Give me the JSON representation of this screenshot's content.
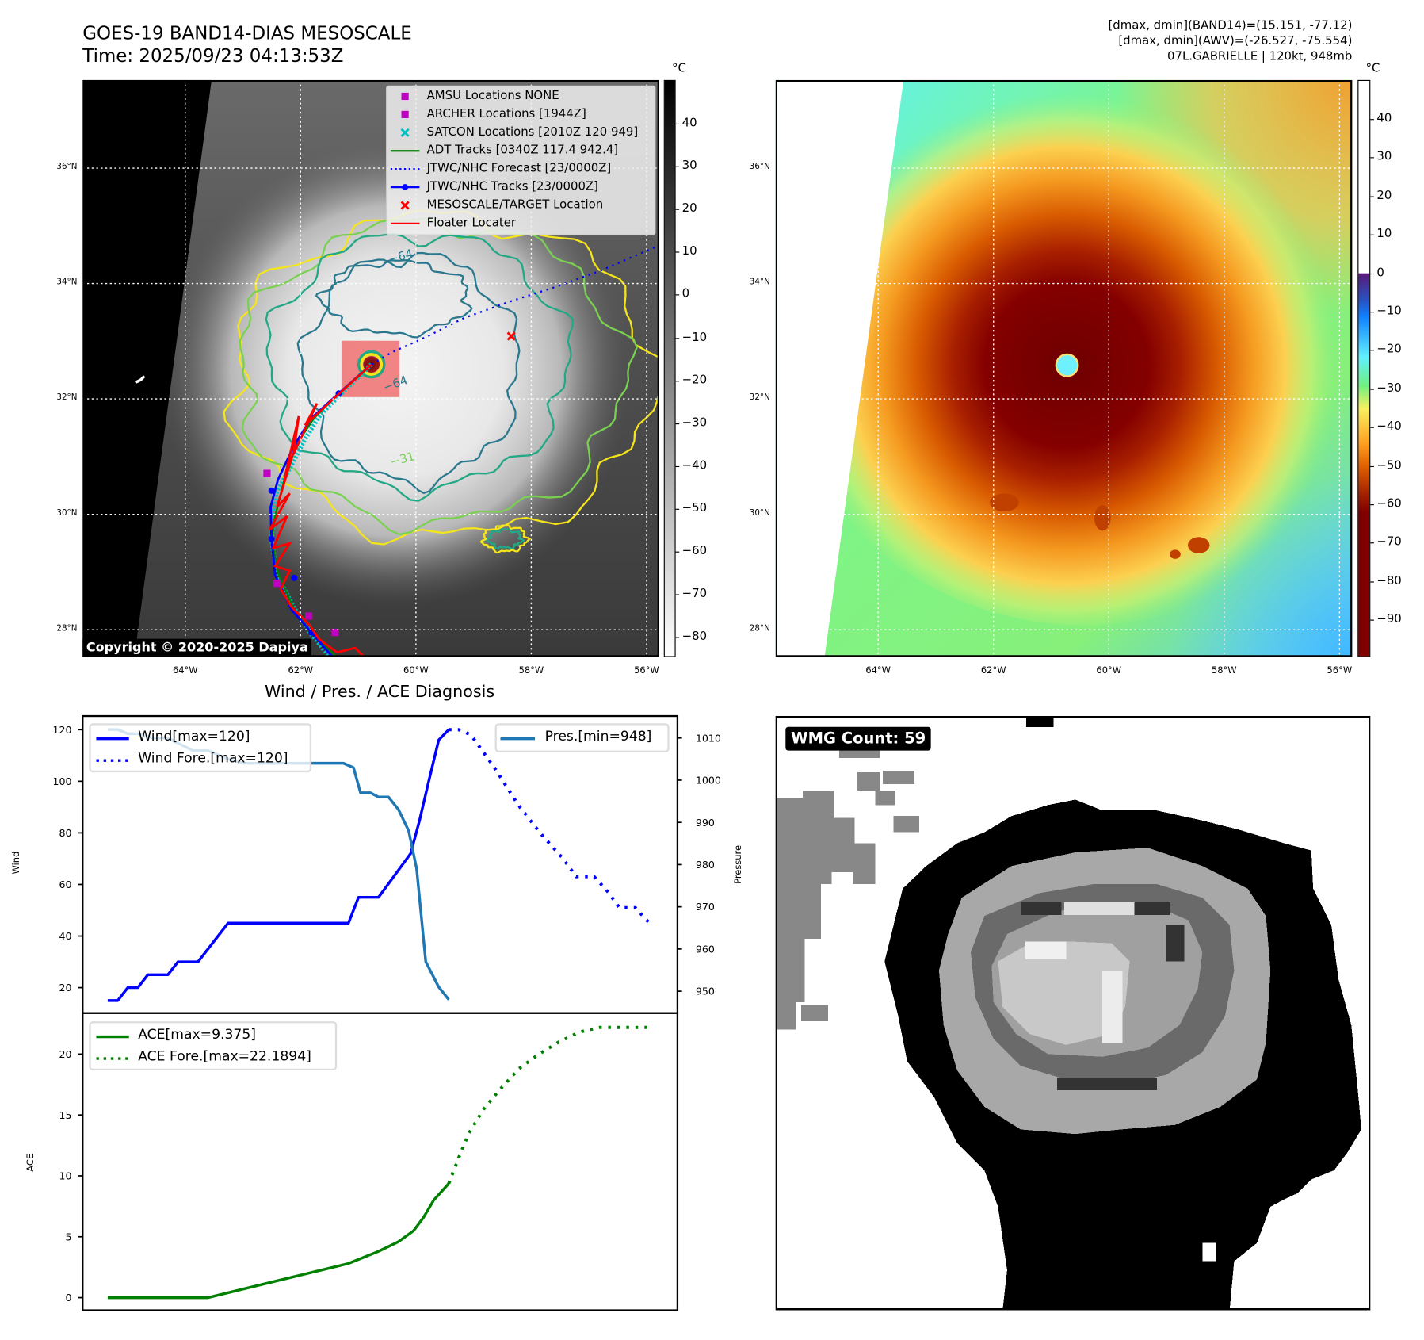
{
  "header": {
    "title": "GOES-19 BAND14-DIAS MESOSCALE",
    "time": "Time: 2025/09/23 04:13:53Z",
    "info": [
      "[dmax, dmin](BAND14)=(15.151, -77.12)",
      "[dmax, dmin](AWV)=(-26.527, -75.554)",
      "07L.GABRIELLE | 120kt, 948mb"
    ]
  },
  "map": {
    "lat_labels": [
      "36°N",
      "34°N",
      "32°N",
      "30°N",
      "28°N"
    ],
    "lon_labels": [
      "64°W",
      "62°W",
      "60°W",
      "58°W",
      "56°W"
    ],
    "copyright": "Copyright © 2020-2025 Dapiya",
    "contour_labels": [
      "−64",
      "−64",
      "−31"
    ],
    "legend": [
      {
        "label": "AMSU Locations NONE",
        "marker": "square",
        "color": "#c000c0"
      },
      {
        "label": "ARCHER Locations [1944Z]",
        "marker": "square",
        "color": "#c000c0"
      },
      {
        "label": "SATCON Locations [2010Z 120 949]",
        "marker": "x",
        "color": "#00c0c0"
      },
      {
        "label": "ADT Tracks [0340Z 117.4 942.4]",
        "marker": "line",
        "color": "#008000"
      },
      {
        "label": "JTWC/NHC Forecast [23/0000Z]",
        "marker": "dotted",
        "color": "#0000ff"
      },
      {
        "label": "JTWC/NHC Tracks [23/0000Z]",
        "marker": "line-dot",
        "color": "#0000ff"
      },
      {
        "label": "MESOSCALE/TARGET Location",
        "marker": "x",
        "color": "#ff0000"
      },
      {
        "label": "Floater Locater",
        "marker": "line",
        "color": "#ff0000"
      }
    ]
  },
  "colorbar_ir": {
    "unit": "°C",
    "ticks": [
      "40",
      "30",
      "20",
      "10",
      "0",
      "−10",
      "−20",
      "−30",
      "−40",
      "−50",
      "−60",
      "−70",
      "−80"
    ]
  },
  "colorbar_awv": {
    "unit": "°C",
    "ticks": [
      "40",
      "30",
      "20",
      "10",
      "0",
      "−10",
      "−20",
      "−30",
      "−40",
      "−50",
      "−60",
      "−70",
      "−80",
      "−90"
    ]
  },
  "diagnosis": {
    "title": "Wind / Pres. / ACE Diagnosis",
    "wind_ylabel": "Wind",
    "pres_ylabel": "Pressure",
    "ace_ylabel": "ACE",
    "legend_wind": "Wind[max=120]",
    "legend_wind_fore": "Wind Fore.[max=120]",
    "legend_pres": "Pres.[min=948]",
    "legend_ace": "ACE[max=9.375]",
    "legend_ace_fore": "ACE Fore.[max=22.1894]"
  },
  "chart_data": [
    {
      "type": "line",
      "title": "Wind / Pres. / ACE Diagnosis",
      "xlabel": "",
      "xlim": [
        -2.5,
        56.8
      ],
      "ylabel": "Wind",
      "ylim": [
        10.1,
        125.3
      ],
      "yticks": [
        20,
        40,
        60,
        80,
        100,
        120
      ],
      "y2label": "Pressure",
      "y2lim": [
        944.8,
        1015.2
      ],
      "y2ticks": [
        950,
        960,
        970,
        980,
        990,
        1000,
        1010
      ],
      "series": [
        {
          "name": "Wind[max=120]",
          "axis": "left",
          "style": "solid",
          "color": "#0000ff",
          "points": [
            [
              0,
              15
            ],
            [
              1,
              15
            ],
            [
              2,
              20
            ],
            [
              3,
              20
            ],
            [
              4,
              25
            ],
            [
              6,
              25
            ],
            [
              7,
              30
            ],
            [
              9,
              30
            ],
            [
              12,
              45
            ],
            [
              24,
              45
            ],
            [
              25,
              55
            ],
            [
              27,
              55
            ],
            [
              30.2,
              72
            ],
            [
              31.1,
              85
            ],
            [
              32,
              100
            ],
            [
              33,
              116
            ],
            [
              34,
              120
            ]
          ]
        },
        {
          "name": "Wind Fore.[max=120]",
          "axis": "left",
          "style": "dotted",
          "color": "#0000ff",
          "points": [
            [
              34,
              120
            ],
            [
              35,
              120
            ],
            [
              36.2,
              118
            ],
            [
              38.6,
              105
            ],
            [
              40.9,
              91
            ],
            [
              43.1,
              80
            ],
            [
              45.4,
              70
            ],
            [
              46.7,
              63
            ],
            [
              48.5,
              63
            ],
            [
              49.9,
              57
            ],
            [
              51,
              51
            ],
            [
              52.6,
              51
            ],
            [
              54,
              45
            ]
          ]
        },
        {
          "name": "Pres.[min=948]",
          "axis": "right",
          "style": "solid",
          "color": "#1f77b4",
          "points": [
            [
              0,
              1012
            ],
            [
              1,
              1012
            ],
            [
              2,
              1011
            ],
            [
              3,
              1011
            ],
            [
              4.5,
              1010
            ],
            [
              6,
              1010
            ],
            [
              8.5,
              1007
            ],
            [
              10,
              1007
            ],
            [
              12,
              1005
            ],
            [
              13.5,
              1004
            ],
            [
              23.5,
              1004
            ],
            [
              24.5,
              1003
            ],
            [
              25.2,
              997
            ],
            [
              26.2,
              997
            ],
            [
              27,
              996
            ],
            [
              28,
              996
            ],
            [
              29,
              993
            ],
            [
              30,
              988
            ],
            [
              30.8,
              979
            ],
            [
              31.7,
              957
            ],
            [
              33,
              951
            ],
            [
              34,
              948
            ]
          ]
        }
      ]
    },
    {
      "type": "line",
      "xlabel": "",
      "xlim": [
        -2.5,
        56.8
      ],
      "ylabel": "ACE",
      "ylim": [
        -1.04,
        23.36
      ],
      "yticks": [
        0,
        5,
        10,
        15,
        20
      ],
      "series": [
        {
          "name": "ACE[max=9.375]",
          "style": "solid",
          "color": "#008000",
          "points": [
            [
              0,
              0
            ],
            [
              10,
              0
            ],
            [
              14,
              0.8
            ],
            [
              18,
              1.6
            ],
            [
              22,
              2.4
            ],
            [
              24,
              2.8
            ],
            [
              27,
              3.8
            ],
            [
              29,
              4.6
            ],
            [
              30.5,
              5.5
            ],
            [
              31.5,
              6.6
            ],
            [
              32.5,
              8
            ],
            [
              34,
              9.375
            ]
          ]
        },
        {
          "name": "ACE Fore.[max=22.1894]",
          "style": "dotted",
          "color": "#008000",
          "points": [
            [
              34,
              9.375
            ],
            [
              35,
              11.5
            ],
            [
              36,
              13.5
            ],
            [
              37.5,
              15.5
            ],
            [
              39,
              17
            ],
            [
              41,
              18.8
            ],
            [
              43,
              20
            ],
            [
              45,
              21
            ],
            [
              47,
              21.8
            ],
            [
              49,
              22.1894
            ],
            [
              54,
              22.1894
            ]
          ]
        }
      ]
    }
  ],
  "wmg": {
    "label": "WMG Count: 59"
  }
}
